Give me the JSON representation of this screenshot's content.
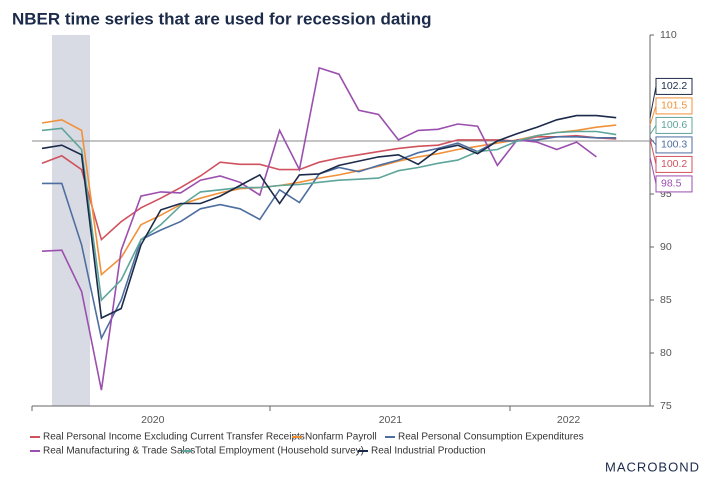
{
  "chart_data": {
    "type": "line",
    "title": "NBER time series that are used for recession dating",
    "logo": "MACROBOND",
    "categories": [
      null,
      null,
      null,
      null,
      null,
      null,
      "2020",
      null,
      null,
      null,
      null,
      null,
      null,
      null,
      null,
      null,
      null,
      null,
      "2021",
      null,
      null,
      null,
      null,
      null,
      null,
      null,
      null,
      "2022",
      null,
      null
    ],
    "ylim": [
      75,
      110
    ],
    "yticks": [
      75,
      80,
      85,
      90,
      95,
      100,
      110
    ],
    "reference_line": 100,
    "series": [
      {
        "name": "Real Personal Income Excluding Current Transfer Receipts",
        "color": "#d0525e",
        "values": [
          97.9,
          98.6,
          97.3,
          90.7,
          92.4,
          93.7,
          94.6,
          95.6,
          96.7,
          98.0,
          97.8,
          97.8,
          97.3,
          97.3,
          98.0,
          98.4,
          98.7,
          99.0,
          99.3,
          99.5,
          99.6,
          100.1,
          100.1,
          100.1,
          100.0,
          100.4,
          100.4,
          100.5,
          100.3,
          100.2
        ]
      },
      {
        "name": "Nonfarm Payroll",
        "color": "#f0913a",
        "values": [
          101.7,
          102.0,
          101.0,
          87.4,
          89.0,
          92.1,
          93.0,
          94.0,
          94.6,
          95.1,
          95.5,
          95.6,
          95.8,
          96.1,
          96.5,
          96.8,
          97.2,
          97.6,
          98.1,
          98.5,
          98.8,
          99.2,
          99.5,
          99.8,
          100.1,
          100.5,
          100.8,
          101.0,
          101.3,
          101.5
        ]
      },
      {
        "name": "Real Personal Consumption Expenditures",
        "color": "#4f6ea0",
        "values": [
          96.0,
          96.0,
          90.2,
          81.4,
          85.0,
          90.7,
          91.6,
          92.4,
          93.6,
          94.0,
          93.6,
          92.6,
          95.4,
          94.2,
          96.9,
          97.5,
          97.1,
          97.7,
          98.2,
          98.9,
          99.3,
          99.8,
          99.0,
          100.0,
          100.0,
          100.1,
          100.4,
          100.4,
          100.3,
          100.3
        ]
      },
      {
        "name": "Real Manufacturing & Trade Sales",
        "color": "#9b4fae",
        "values": [
          89.6,
          89.7,
          85.8,
          76.5,
          89.7,
          94.8,
          95.2,
          95.1,
          96.3,
          96.7,
          96.1,
          94.9,
          101.0,
          97.3,
          106.9,
          106.3,
          102.9,
          102.5,
          100.1,
          101.0,
          101.1,
          101.6,
          101.4,
          97.7,
          100.1,
          99.9,
          99.2,
          99.9,
          98.5,
          null
        ]
      },
      {
        "name": "Total Employment (Household survey)",
        "color": "#5ea59b",
        "values": [
          101.0,
          101.2,
          99.2,
          85.0,
          86.9,
          90.7,
          92.1,
          93.9,
          95.2,
          95.4,
          95.6,
          95.6,
          95.8,
          95.9,
          96.1,
          96.3,
          96.4,
          96.5,
          97.2,
          97.5,
          97.9,
          98.2,
          99.0,
          99.2,
          100.0,
          100.5,
          100.8,
          100.9,
          100.9,
          100.6
        ]
      },
      {
        "name": "Real Industrial Production",
        "color": "#1c2b4a",
        "values": [
          99.3,
          99.6,
          98.7,
          83.3,
          84.2,
          90.2,
          93.5,
          94.1,
          94.1,
          94.8,
          95.8,
          96.8,
          94.1,
          96.8,
          96.9,
          97.7,
          98.1,
          98.5,
          98.7,
          97.8,
          99.2,
          99.6,
          98.8,
          100.0,
          100.7,
          101.3,
          102.0,
          102.4,
          102.4,
          102.2
        ]
      }
    ]
  }
}
